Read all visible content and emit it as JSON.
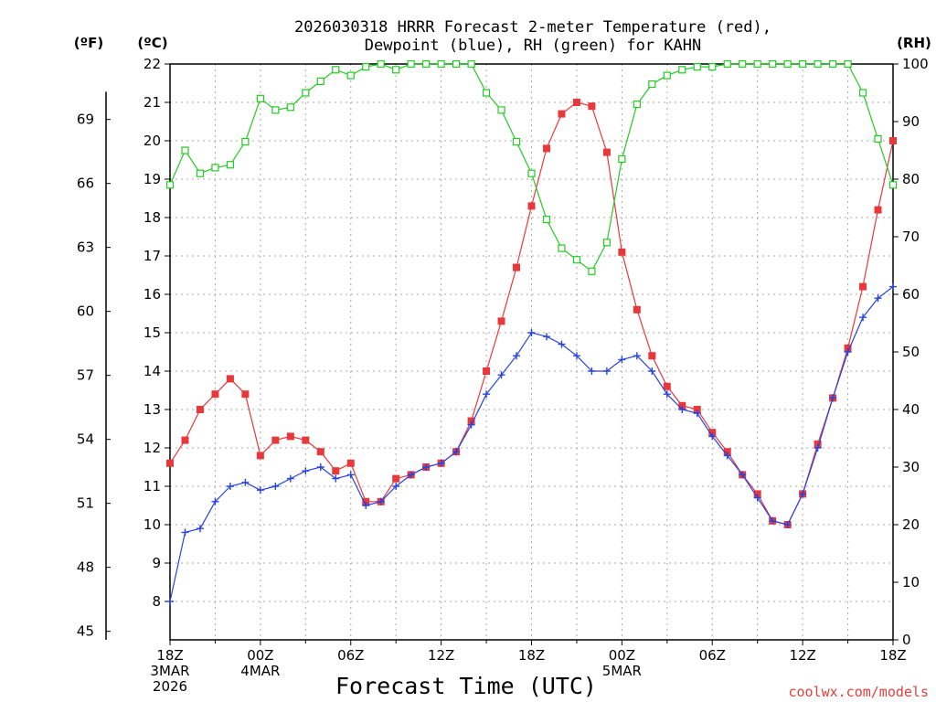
{
  "chart_data": {
    "type": "line",
    "title_line1": "2026030318 HRRR Forecast 2-meter Temperature (red),",
    "title_line2": "Dewpoint (blue), RH (green) for KAHN",
    "xlabel": "Forecast Time (UTC)",
    "credit": "coolwx.com/models",
    "y_left_outer": {
      "label": "(ºF)",
      "ticks": [
        45,
        48,
        51,
        54,
        57,
        60,
        63,
        66,
        69
      ]
    },
    "y_left_inner": {
      "label": "(ºC)",
      "range": [
        7,
        22
      ],
      "ticks": [
        8,
        9,
        10,
        11,
        12,
        13,
        14,
        15,
        16,
        17,
        18,
        19,
        20,
        21,
        22
      ]
    },
    "y_right": {
      "label": "(RH)",
      "range": [
        0,
        100
      ],
      "ticks": [
        0,
        10,
        20,
        30,
        40,
        50,
        60,
        70,
        80,
        90,
        100
      ]
    },
    "x_range_hours": [
      0,
      48
    ],
    "x_ticks": [
      {
        "hour": 0,
        "lines": [
          "18Z",
          "3MAR",
          "2026"
        ]
      },
      {
        "hour": 6,
        "lines": [
          "00Z",
          "4MAR"
        ]
      },
      {
        "hour": 12,
        "lines": [
          "06Z"
        ]
      },
      {
        "hour": 18,
        "lines": [
          "12Z"
        ]
      },
      {
        "hour": 24,
        "lines": [
          "18Z"
        ]
      },
      {
        "hour": 30,
        "lines": [
          "00Z",
          "5MAR"
        ]
      },
      {
        "hour": 36,
        "lines": [
          "06Z"
        ]
      },
      {
        "hour": 42,
        "lines": [
          "12Z"
        ]
      },
      {
        "hour": 48,
        "lines": [
          "18Z"
        ]
      }
    ],
    "series": [
      {
        "name": "Temperature",
        "unit": "C",
        "color": "#e8383c",
        "marker": "filled-square",
        "values": [
          11.6,
          12.2,
          13.0,
          13.4,
          13.8,
          13.4,
          11.8,
          12.2,
          12.3,
          12.2,
          11.9,
          11.4,
          11.6,
          10.6,
          10.6,
          11.2,
          11.3,
          11.5,
          11.6,
          11.9,
          12.7,
          14.0,
          15.3,
          16.7,
          18.3,
          19.8,
          20.7,
          21.0,
          20.9,
          19.7,
          17.1,
          15.6,
          14.4,
          13.6,
          13.1,
          13.0,
          12.4,
          11.9,
          11.3,
          10.8,
          10.1,
          10.0,
          10.8,
          12.1,
          13.3,
          14.6,
          16.2,
          18.2,
          20.0
        ]
      },
      {
        "name": "Dewpoint",
        "unit": "C",
        "color": "#2844e0",
        "marker": "plus",
        "values": [
          8.0,
          9.8,
          9.9,
          10.6,
          11.0,
          11.1,
          10.9,
          11.0,
          11.2,
          11.4,
          11.5,
          11.2,
          11.3,
          10.5,
          10.6,
          11.0,
          11.3,
          11.5,
          11.6,
          11.9,
          12.6,
          13.4,
          13.9,
          14.4,
          15.0,
          14.9,
          14.7,
          14.4,
          14.0,
          14.0,
          14.3,
          14.4,
          14.0,
          13.4,
          13.0,
          12.9,
          12.3,
          11.8,
          11.3,
          10.7,
          10.1,
          10.0,
          10.8,
          12.0,
          13.3,
          14.5,
          15.4,
          15.9,
          16.2
        ]
      },
      {
        "name": "RH",
        "unit": "%",
        "color": "#22cc22",
        "marker": "open-square",
        "values": [
          79,
          85,
          81,
          82,
          82.5,
          86.5,
          94,
          92,
          92.5,
          95,
          97,
          99,
          98,
          99.5,
          100,
          99,
          100,
          100,
          100,
          100,
          100,
          95,
          92,
          86.5,
          81,
          73,
          68,
          66,
          64,
          69,
          83.5,
          93,
          96.5,
          98,
          99,
          99.5,
          99.5,
          100,
          100,
          100,
          100,
          100,
          100,
          100,
          100,
          100,
          95,
          87,
          79
        ]
      }
    ]
  }
}
